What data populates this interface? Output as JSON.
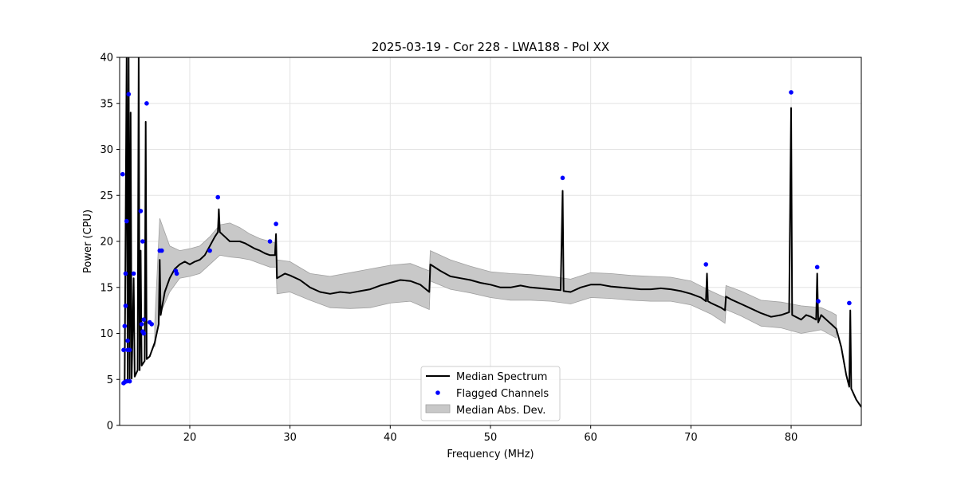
{
  "chart_data": {
    "type": "line",
    "title": "2025-03-19 - Cor 228 - LWA188 - Pol XX",
    "xlabel": "Frequency (MHz)",
    "ylabel": "Power (CPU)",
    "xlim": [
      13,
      87
    ],
    "ylim": [
      0,
      40
    ],
    "xticks": [
      20,
      30,
      40,
      50,
      60,
      70,
      80
    ],
    "yticks": [
      0,
      5,
      10,
      15,
      20,
      25,
      30,
      35,
      40
    ],
    "grid": true,
    "legend_position": "bottom-center",
    "colors": {
      "median": "#000000",
      "flagged": "#0000ff",
      "mad_fill": "#c8c8c8",
      "mad_edge": "#a0a0a0"
    },
    "legend": [
      {
        "label": "Median Spectrum",
        "kind": "line"
      },
      {
        "label": "Flagged Channels",
        "kind": "marker"
      },
      {
        "label": "Median Abs. Dev.",
        "kind": "patch"
      }
    ],
    "series": [
      {
        "name": "Median Spectrum",
        "points": [
          [
            13.2,
            4.5
          ],
          [
            13.5,
            4.6
          ],
          [
            13.7,
            40
          ],
          [
            13.8,
            4.8
          ],
          [
            13.9,
            40
          ],
          [
            14.0,
            5.0
          ],
          [
            14.1,
            34
          ],
          [
            14.2,
            5.1
          ],
          [
            14.4,
            16
          ],
          [
            14.5,
            5.3
          ],
          [
            14.8,
            6.0
          ],
          [
            14.9,
            40
          ],
          [
            15.0,
            6.0
          ],
          [
            15.1,
            19
          ],
          [
            15.2,
            6.5
          ],
          [
            15.5,
            7.0
          ],
          [
            15.6,
            33
          ],
          [
            15.7,
            7.2
          ],
          [
            16.0,
            7.5
          ],
          [
            16.5,
            9.0
          ],
          [
            16.9,
            11.0
          ],
          [
            17.0,
            18
          ],
          [
            17.1,
            12.0
          ],
          [
            17.5,
            14.5
          ],
          [
            18.0,
            16.0
          ],
          [
            18.5,
            17.0
          ],
          [
            19.0,
            17.5
          ],
          [
            19.5,
            17.8
          ],
          [
            20.0,
            17.5
          ],
          [
            20.5,
            17.8
          ],
          [
            21.0,
            18.0
          ],
          [
            21.5,
            18.5
          ],
          [
            22.0,
            19.5
          ],
          [
            22.5,
            20.5
          ],
          [
            22.8,
            21.0
          ],
          [
            22.9,
            23.5
          ],
          [
            23.0,
            21.0
          ],
          [
            23.5,
            20.5
          ],
          [
            24.0,
            20.0
          ],
          [
            24.5,
            20.0
          ],
          [
            25.0,
            20.0
          ],
          [
            25.5,
            19.8
          ],
          [
            26.0,
            19.5
          ],
          [
            26.5,
            19.2
          ],
          [
            27.0,
            19.0
          ],
          [
            27.5,
            18.7
          ],
          [
            28.0,
            18.5
          ],
          [
            28.5,
            18.5
          ],
          [
            28.6,
            20.8
          ],
          [
            28.7,
            16.0
          ],
          [
            29.5,
            16.5
          ],
          [
            30.0,
            16.3
          ],
          [
            31.0,
            15.8
          ],
          [
            32.0,
            15.0
          ],
          [
            33.0,
            14.5
          ],
          [
            34.0,
            14.3
          ],
          [
            35.0,
            14.5
          ],
          [
            36.0,
            14.4
          ],
          [
            37.0,
            14.6
          ],
          [
            38.0,
            14.8
          ],
          [
            39.0,
            15.2
          ],
          [
            40.0,
            15.5
          ],
          [
            41.0,
            15.8
          ],
          [
            42.0,
            15.7
          ],
          [
            43.0,
            15.3
          ],
          [
            43.9,
            14.5
          ],
          [
            44.0,
            17.5
          ],
          [
            45.0,
            16.8
          ],
          [
            46.0,
            16.2
          ],
          [
            47.0,
            16.0
          ],
          [
            48.0,
            15.8
          ],
          [
            49.0,
            15.5
          ],
          [
            50.0,
            15.3
          ],
          [
            51.0,
            15.0
          ],
          [
            52.0,
            15.0
          ],
          [
            53.0,
            15.2
          ],
          [
            54.0,
            15.0
          ],
          [
            55.0,
            14.9
          ],
          [
            56.0,
            14.8
          ],
          [
            57.0,
            14.7
          ],
          [
            57.2,
            25.5
          ],
          [
            57.3,
            14.6
          ],
          [
            58.0,
            14.5
          ],
          [
            59.0,
            15.0
          ],
          [
            60.0,
            15.3
          ],
          [
            61.0,
            15.3
          ],
          [
            62.0,
            15.1
          ],
          [
            63.0,
            15.0
          ],
          [
            64.0,
            14.9
          ],
          [
            65.0,
            14.8
          ],
          [
            66.0,
            14.8
          ],
          [
            67.0,
            14.9
          ],
          [
            68.0,
            14.8
          ],
          [
            69.0,
            14.6
          ],
          [
            70.0,
            14.3
          ],
          [
            71.0,
            13.9
          ],
          [
            71.5,
            13.5
          ],
          [
            71.6,
            16.5
          ],
          [
            71.7,
            13.5
          ],
          [
            72.0,
            13.3
          ],
          [
            73.0,
            12.8
          ],
          [
            73.4,
            12.5
          ],
          [
            73.5,
            14.0
          ],
          [
            74.0,
            13.7
          ],
          [
            75.0,
            13.2
          ],
          [
            76.0,
            12.7
          ],
          [
            77.0,
            12.2
          ],
          [
            78.0,
            11.8
          ],
          [
            79.0,
            12.0
          ],
          [
            79.8,
            12.3
          ],
          [
            80.0,
            34.5
          ],
          [
            80.1,
            12.0
          ],
          [
            81.0,
            11.5
          ],
          [
            81.5,
            12.0
          ],
          [
            82.0,
            11.8
          ],
          [
            82.5,
            11.5
          ],
          [
            82.6,
            16.5
          ],
          [
            82.7,
            11.2
          ],
          [
            83.0,
            12.0
          ],
          [
            83.5,
            11.5
          ],
          [
            84.0,
            11.0
          ],
          [
            84.5,
            10.5
          ],
          [
            85.0,
            8.5
          ],
          [
            85.5,
            5.5
          ],
          [
            85.8,
            4.2
          ],
          [
            85.9,
            12.5
          ],
          [
            86.0,
            4.0
          ],
          [
            86.5,
            2.8
          ],
          [
            87.0,
            2.0
          ]
        ]
      },
      {
        "name": "Flagged Channels",
        "points": [
          [
            13.3,
            27.3
          ],
          [
            13.4,
            8.2
          ],
          [
            13.5,
            10.8
          ],
          [
            13.6,
            16.5
          ],
          [
            13.6,
            13.0
          ],
          [
            13.7,
            22.2
          ],
          [
            13.8,
            9.2
          ],
          [
            13.8,
            8.2
          ],
          [
            13.9,
            36.0
          ],
          [
            14.0,
            4.8
          ],
          [
            13.4,
            4.6
          ],
          [
            13.5,
            4.7
          ],
          [
            13.7,
            4.8
          ],
          [
            14.0,
            8.2
          ],
          [
            14.4,
            16.5
          ],
          [
            15.1,
            23.3
          ],
          [
            15.2,
            11.0
          ],
          [
            15.3,
            20.0
          ],
          [
            15.3,
            10.2
          ],
          [
            15.4,
            10.0
          ],
          [
            15.4,
            11.5
          ],
          [
            15.7,
            35.0
          ],
          [
            16.0,
            11.2
          ],
          [
            16.2,
            11.0
          ],
          [
            17.0,
            19.0
          ],
          [
            17.2,
            19.0
          ],
          [
            18.6,
            16.8
          ],
          [
            18.7,
            16.5
          ],
          [
            22.0,
            19.0
          ],
          [
            22.8,
            24.8
          ],
          [
            28.0,
            20.0
          ],
          [
            28.6,
            21.9
          ],
          [
            57.2,
            26.9
          ],
          [
            71.5,
            17.5
          ],
          [
            80.0,
            36.2
          ],
          [
            82.6,
            17.2
          ],
          [
            82.7,
            13.5
          ],
          [
            85.8,
            13.3
          ]
        ]
      }
    ],
    "mad_band": {
      "name": "Median Abs. Dev.",
      "x": [
        16.5,
        17.0,
        18.0,
        19.0,
        20.0,
        21.0,
        22.0,
        23.0,
        24.0,
        25.0,
        26.0,
        27.0,
        28.0,
        28.6,
        28.7,
        30.0,
        32.0,
        34.0,
        36.0,
        38.0,
        40.0,
        42.0,
        43.9,
        44.0,
        46.0,
        48.0,
        50.0,
        52.0,
        54.0,
        56.0,
        58.0,
        60.0,
        62.0,
        64.0,
        66.0,
        68.0,
        70.0,
        72.0,
        73.4,
        73.5,
        75.0,
        77.0,
        79.0,
        81.0,
        83.0,
        84.0,
        84.5
      ],
      "upper": [
        11.0,
        22.5,
        19.5,
        19.0,
        19.2,
        19.5,
        20.5,
        21.8,
        22.0,
        21.5,
        20.8,
        20.3,
        20.0,
        19.8,
        18.0,
        17.8,
        16.5,
        16.2,
        16.6,
        17.0,
        17.4,
        17.6,
        16.8,
        19.0,
        18.0,
        17.3,
        16.7,
        16.5,
        16.4,
        16.2,
        15.9,
        16.6,
        16.5,
        16.3,
        16.2,
        16.1,
        15.7,
        14.6,
        13.9,
        15.2,
        14.6,
        13.6,
        13.4,
        13.0,
        12.8,
        12.3,
        12.0
      ],
      "lower": [
        8.5,
        12.0,
        14.5,
        16.0,
        16.2,
        16.5,
        17.5,
        18.5,
        18.3,
        18.2,
        18.0,
        17.6,
        17.2,
        17.2,
        14.3,
        14.5,
        13.6,
        12.8,
        12.7,
        12.8,
        13.3,
        13.5,
        12.6,
        15.7,
        14.8,
        14.4,
        13.9,
        13.6,
        13.6,
        13.5,
        13.2,
        13.9,
        13.8,
        13.6,
        13.5,
        13.5,
        13.1,
        12.1,
        11.1,
        12.6,
        11.9,
        10.8,
        10.6,
        10.0,
        10.4,
        9.8,
        9.5
      ]
    }
  }
}
